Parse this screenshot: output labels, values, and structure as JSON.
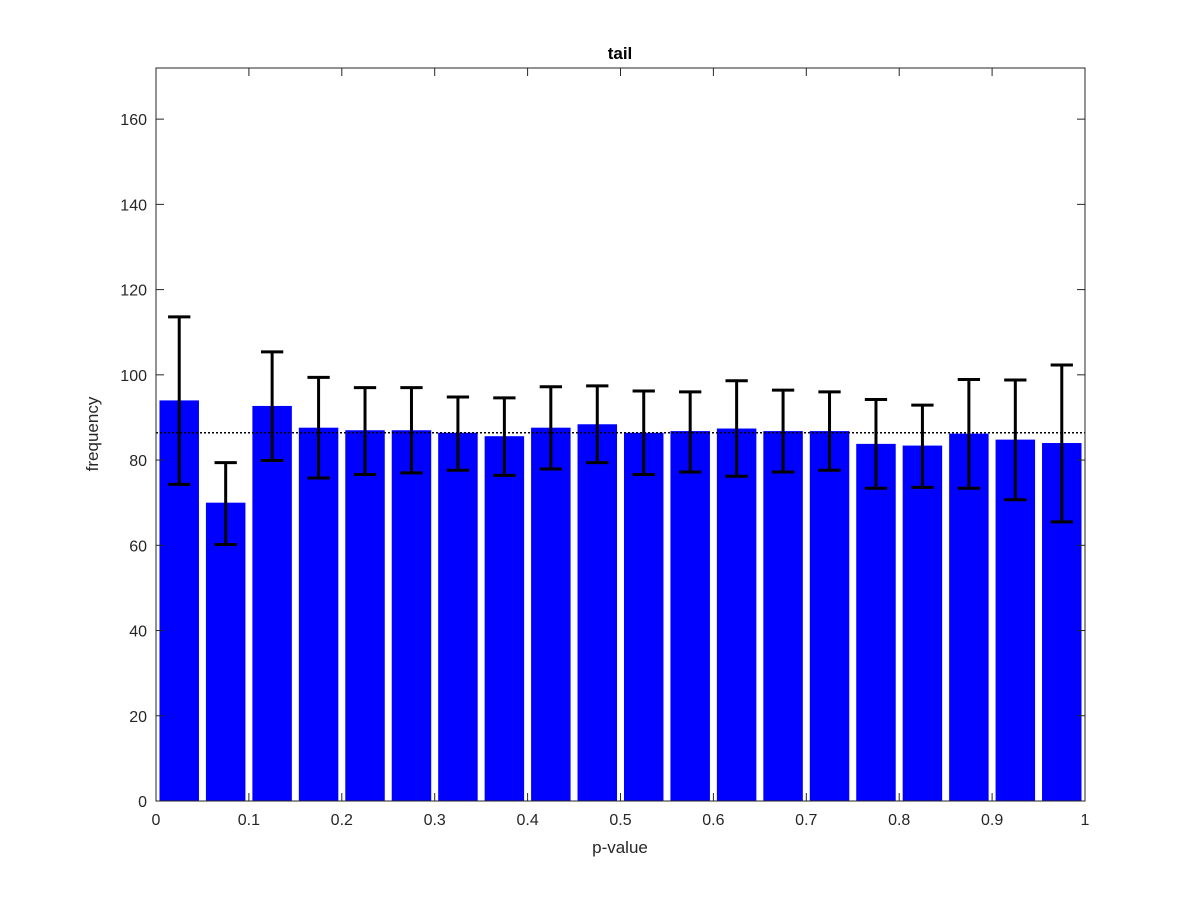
{
  "chart_data": {
    "type": "bar",
    "title": "tail",
    "xlabel": "p-value",
    "ylabel": "frequency",
    "xlim": [
      0,
      1
    ],
    "ylim": [
      0,
      172
    ],
    "xticks": [
      0,
      0.1,
      0.2,
      0.3,
      0.4,
      0.5,
      0.6,
      0.7,
      0.8,
      0.9,
      1
    ],
    "xtick_labels": [
      "0",
      "0.1",
      "0.2",
      "0.3",
      "0.4",
      "0.5",
      "0.6",
      "0.7",
      "0.8",
      "0.9",
      "1"
    ],
    "yticks": [
      0,
      20,
      40,
      60,
      80,
      100,
      120,
      140,
      160
    ],
    "ytick_labels": [
      "0",
      "20",
      "40",
      "60",
      "80",
      "100",
      "120",
      "140",
      "160"
    ],
    "bin_centers": [
      0.025,
      0.075,
      0.125,
      0.175,
      0.225,
      0.275,
      0.325,
      0.375,
      0.425,
      0.475,
      0.525,
      0.575,
      0.625,
      0.675,
      0.725,
      0.775,
      0.825,
      0.875,
      0.925,
      0.975
    ],
    "values": [
      94,
      70,
      92.7,
      87.6,
      87,
      87,
      86.4,
      85.6,
      87.6,
      88.4,
      86.4,
      86.8,
      87.4,
      86.8,
      86.8,
      83.8,
      83.4,
      86.2,
      84.8,
      84
    ],
    "error_low": [
      74.3,
      60.2,
      79.9,
      75.8,
      76.6,
      77,
      77.6,
      76.4,
      77.9,
      79.4,
      76.6,
      77.2,
      76.2,
      77.2,
      77.6,
      73.4,
      73.6,
      73.4,
      70.7,
      65.5
    ],
    "error_high": [
      113.6,
      79.4,
      105.4,
      99.4,
      97,
      97,
      94.8,
      94.6,
      97.2,
      97.4,
      96.2,
      96,
      98.6,
      96.4,
      96,
      94.2,
      92.9,
      98.9,
      98.8,
      102.3
    ],
    "reference_line": 86.4,
    "grid": false,
    "colors": {
      "bar": "#0000ff",
      "error": "#000000",
      "reference": "#000000"
    }
  }
}
